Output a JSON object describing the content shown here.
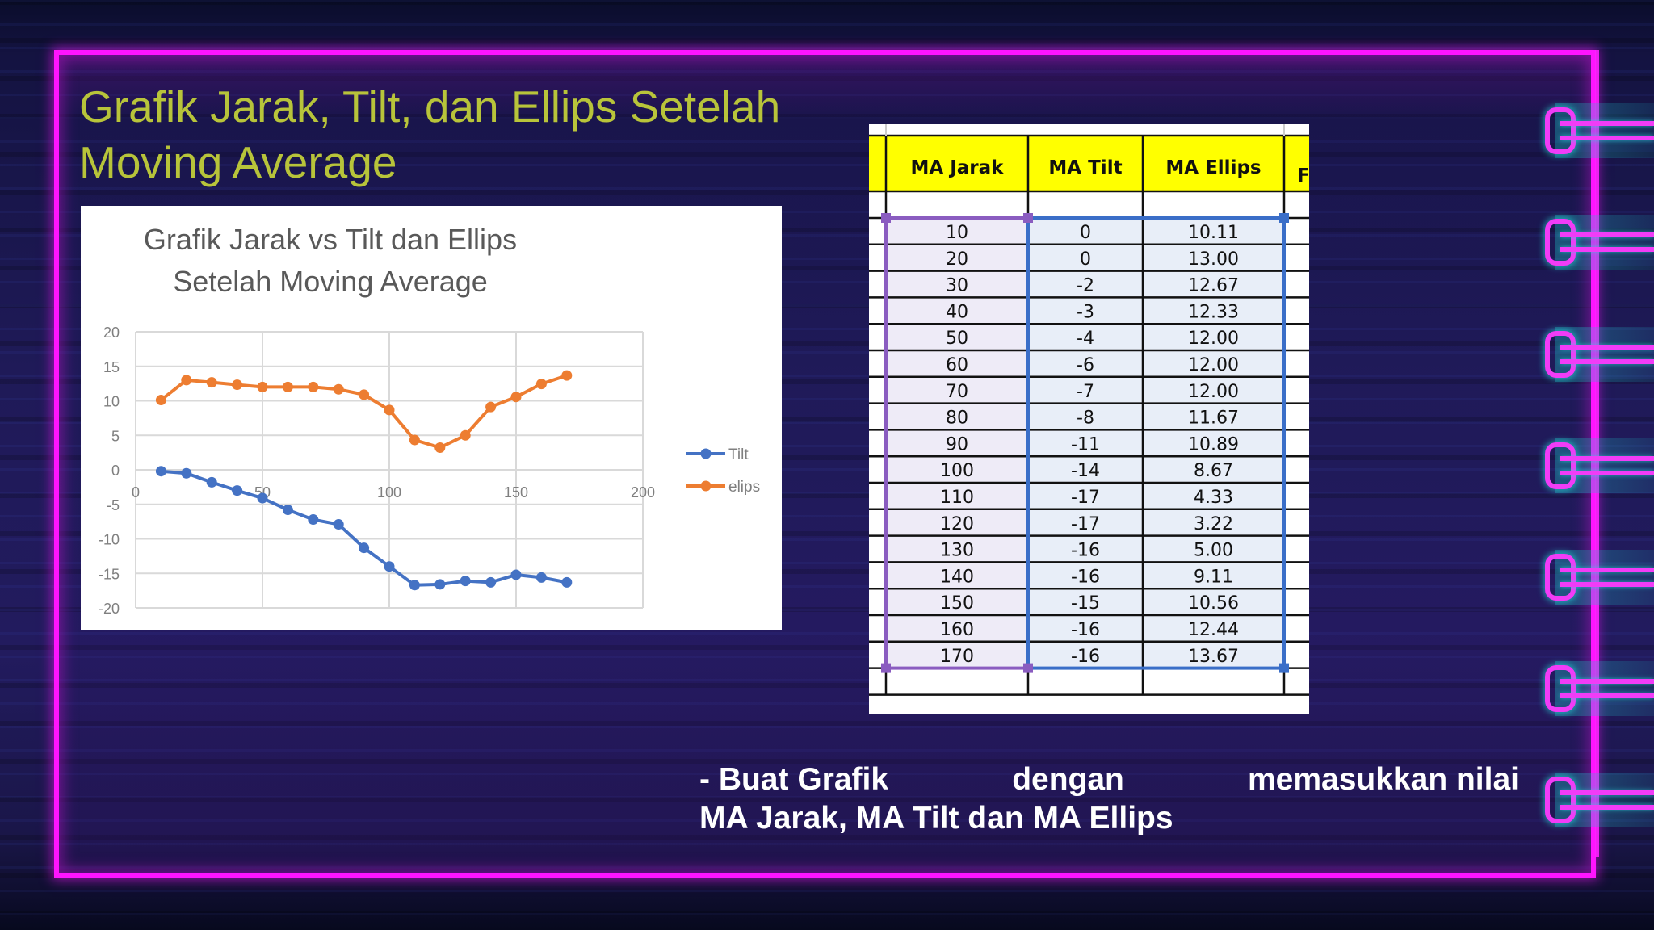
{
  "slide": {
    "title": "Grafik Jarak, Tilt, dan Ellips Setelah Moving Average",
    "title_line1": "Grafik Jarak, Tilt, dan Ellips Setelah",
    "title_line2": "Moving Average",
    "instruction": {
      "line1_words": [
        "- Buat Grafik",
        "dengan",
        "memasukkan nilai"
      ],
      "line2": "MA Jarak, MA Tilt dan MA Ellips"
    },
    "colors": {
      "frame": "#ff14ff",
      "title": "#b8c43a",
      "background": "#1f1a58",
      "header_fill": "#ffff00",
      "tilt_series": "#4472c4",
      "ellips_series": "#ed7d31"
    }
  },
  "table": {
    "headers": [
      "MA Jarak",
      "MA Tilt",
      "MA Ellips"
    ],
    "clipped_header": "F",
    "rows": [
      [
        "10",
        "0",
        "10.11"
      ],
      [
        "20",
        "0",
        "13.00"
      ],
      [
        "30",
        "-2",
        "12.67"
      ],
      [
        "40",
        "-3",
        "12.33"
      ],
      [
        "50",
        "-4",
        "12.00"
      ],
      [
        "60",
        "-6",
        "12.00"
      ],
      [
        "70",
        "-7",
        "12.00"
      ],
      [
        "80",
        "-8",
        "11.67"
      ],
      [
        "90",
        "-11",
        "10.89"
      ],
      [
        "100",
        "-14",
        "8.67"
      ],
      [
        "110",
        "-17",
        "4.33"
      ],
      [
        "120",
        "-17",
        "3.22"
      ],
      [
        "130",
        "-16",
        "5.00"
      ],
      [
        "140",
        "-16",
        "9.11"
      ],
      [
        "150",
        "-15",
        "10.56"
      ],
      [
        "160",
        "-16",
        "12.44"
      ],
      [
        "170",
        "-16",
        "13.67"
      ]
    ]
  },
  "chart_data": {
    "type": "line",
    "title": "Grafik Jarak vs Tilt dan Ellips Setelah Moving Average",
    "title_line1": "Grafik Jarak vs Tilt dan Ellips",
    "title_line2": "Setelah Moving Average",
    "xlabel": "",
    "ylabel": "",
    "xlim": [
      0,
      200
    ],
    "ylim": [
      -20,
      20
    ],
    "xticks": [
      0,
      50,
      100,
      150,
      200
    ],
    "yticks": [
      20,
      15,
      10,
      5,
      0,
      -5,
      -10,
      -15,
      -20
    ],
    "grid": true,
    "legend_position": "right",
    "x": [
      10,
      20,
      30,
      40,
      50,
      60,
      70,
      80,
      90,
      100,
      110,
      120,
      130,
      140,
      150,
      160,
      170
    ],
    "series": [
      {
        "name": "Tilt",
        "color": "#4472c4",
        "values": [
          -0.2,
          -0.5,
          -1.8,
          -3,
          -4.1,
          -5.8,
          -7.2,
          -7.9,
          -11.3,
          -14,
          -16.7,
          -16.6,
          -16.1,
          -16.3,
          -15.2,
          -15.6,
          -16.3
        ]
      },
      {
        "name": "elips",
        "color": "#ed7d31",
        "values": [
          10.11,
          13.0,
          12.67,
          12.33,
          12.0,
          12.0,
          12.0,
          11.67,
          10.89,
          8.67,
          4.33,
          3.22,
          5.0,
          9.11,
          10.56,
          12.44,
          13.67
        ]
      }
    ]
  }
}
